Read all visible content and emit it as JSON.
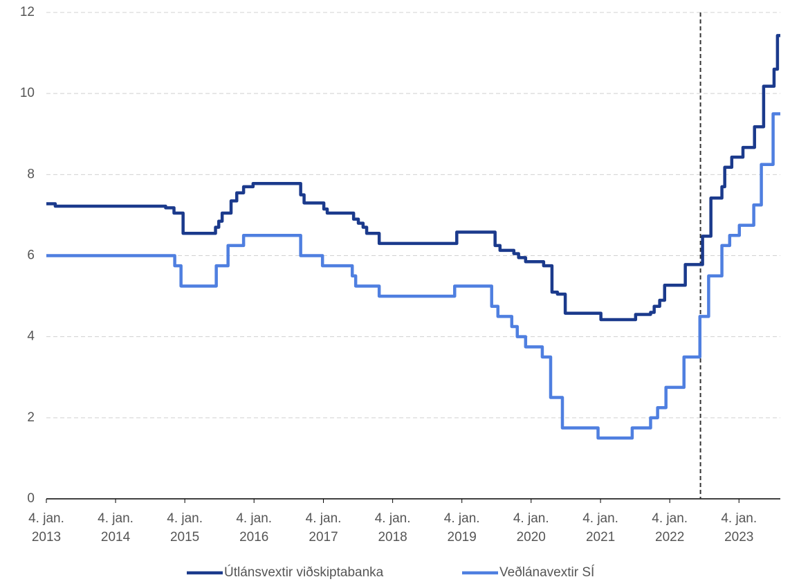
{
  "chart_data": {
    "type": "line",
    "step": true,
    "xlim": [
      "2013-01-04",
      "2023-08-10"
    ],
    "xticks": [
      {
        "value": "2013-01-04",
        "label": [
          "4. jan.",
          "2013"
        ]
      },
      {
        "value": "2014-01-04",
        "label": [
          "4. jan.",
          "2014"
        ]
      },
      {
        "value": "2015-01-04",
        "label": [
          "4. jan.",
          "2015"
        ]
      },
      {
        "value": "2016-01-04",
        "label": [
          "4. jan.",
          "2016"
        ]
      },
      {
        "value": "2017-01-04",
        "label": [
          "4. jan.",
          "2017"
        ]
      },
      {
        "value": "2018-01-04",
        "label": [
          "4. jan.",
          "2018"
        ]
      },
      {
        "value": "2019-01-04",
        "label": [
          "4. jan.",
          "2019"
        ]
      },
      {
        "value": "2020-01-04",
        "label": [
          "4. jan.",
          "2020"
        ]
      },
      {
        "value": "2021-01-04",
        "label": [
          "4. jan.",
          "2021"
        ]
      },
      {
        "value": "2022-01-04",
        "label": [
          "4. jan.",
          "2022"
        ]
      },
      {
        "value": "2023-01-04",
        "label": [
          "4. jan.",
          "2023"
        ]
      }
    ],
    "ylim": [
      0,
      12
    ],
    "yticks": [
      0,
      2,
      4,
      6,
      8,
      10,
      12
    ],
    "grid": true,
    "vline": "2022-06-15",
    "legend": "bottom",
    "series": [
      {
        "name": "Útlánsvextir viðskiptabanka",
        "color": "#1b3a8c",
        "x": [
          "2013-01-04",
          "2013-02-20",
          "2014-09-25",
          "2014-11-08",
          "2014-12-26",
          "2015-06-15",
          "2015-07-02",
          "2015-07-20",
          "2015-09-05",
          "2015-10-05",
          "2015-11-10",
          "2015-12-30",
          "2016-09-06",
          "2016-09-24",
          "2017-01-06",
          "2017-01-24",
          "2017-06-12",
          "2017-07-07",
          "2017-08-01",
          "2017-08-20",
          "2017-10-25",
          "2018-12-08",
          "2019-06-28",
          "2019-07-24",
          "2019-10-05",
          "2019-10-30",
          "2019-12-06",
          "2020-03-10",
          "2020-04-23",
          "2020-05-22",
          "2020-07-02",
          "2021-01-06",
          "2021-07-08",
          "2021-09-25",
          "2021-10-14",
          "2021-11-12",
          "2021-12-08",
          "2022-03-27",
          "2022-06-26",
          "2022-08-09",
          "2022-10-06",
          "2022-10-21",
          "2022-11-27",
          "2023-01-25",
          "2023-03-27",
          "2023-05-14",
          "2023-07-08",
          "2023-07-26",
          "2023-08-10"
        ],
        "values": [
          7.28,
          7.22,
          7.18,
          7.05,
          6.55,
          6.7,
          6.85,
          7.05,
          7.35,
          7.55,
          7.7,
          7.78,
          7.5,
          7.3,
          7.15,
          7.05,
          6.9,
          6.8,
          6.7,
          6.55,
          6.3,
          6.58,
          6.25,
          6.13,
          6.05,
          5.95,
          5.85,
          5.75,
          5.1,
          5.05,
          4.58,
          4.42,
          4.55,
          4.6,
          4.75,
          4.9,
          5.27,
          5.78,
          6.48,
          7.42,
          7.7,
          8.18,
          8.43,
          8.67,
          9.18,
          10.18,
          10.6,
          11.43,
          11.43
        ]
      },
      {
        "name": "Veðlánavextir SÍ",
        "color": "#4f7fe0",
        "x": [
          "2013-01-04",
          "2014-11-12",
          "2014-12-15",
          "2015-06-19",
          "2015-08-20",
          "2015-11-10",
          "2016-09-06",
          "2016-12-30",
          "2017-06-05",
          "2017-06-23",
          "2017-10-25",
          "2018-11-27",
          "2019-06-10",
          "2019-07-13",
          "2019-09-24",
          "2019-10-23",
          "2019-12-06",
          "2020-03-03",
          "2020-04-16",
          "2020-06-17",
          "2020-12-22",
          "2021-06-20",
          "2021-09-25",
          "2021-11-01",
          "2021-12-15",
          "2022-03-20",
          "2022-06-12",
          "2022-07-28",
          "2022-10-06",
          "2022-11-16",
          "2023-01-06",
          "2023-03-23",
          "2023-05-02",
          "2023-07-03",
          "2023-08-10"
        ],
        "values": [
          6.0,
          5.75,
          5.25,
          5.75,
          6.25,
          6.5,
          6.0,
          5.75,
          5.5,
          5.25,
          5.0,
          5.25,
          4.75,
          4.5,
          4.25,
          4.0,
          3.75,
          3.5,
          2.5,
          1.75,
          1.5,
          1.75,
          2.0,
          2.25,
          2.75,
          3.5,
          4.5,
          5.5,
          6.25,
          6.5,
          6.75,
          7.25,
          8.25,
          9.5,
          9.5
        ]
      }
    ]
  }
}
